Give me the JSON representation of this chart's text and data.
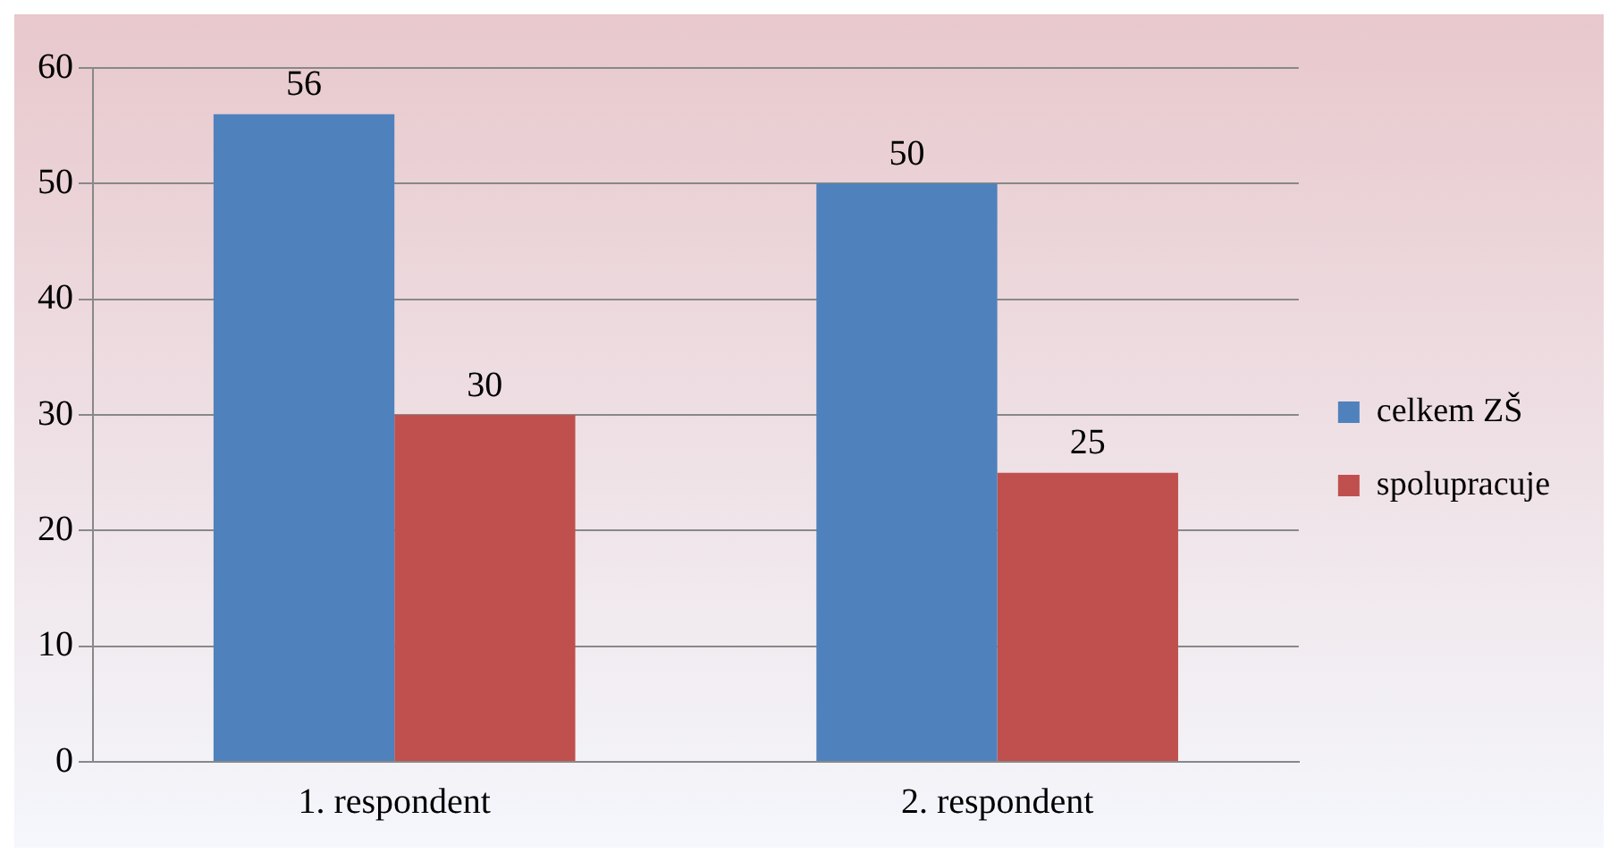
{
  "chart_data": {
    "type": "bar",
    "categories": [
      "1. respondent",
      "2. respondent"
    ],
    "series": [
      {
        "name": "celkem ZŠ",
        "color": "#4f81bd",
        "values": [
          56,
          50
        ]
      },
      {
        "name": "spolupracuje",
        "color": "#c0504d",
        "values": [
          30,
          25
        ]
      }
    ],
    "ylim": [
      0,
      60
    ],
    "yticks": [
      0,
      10,
      20,
      30,
      40,
      50,
      60
    ],
    "grid": "y",
    "legend": "right",
    "data_labels": true
  }
}
